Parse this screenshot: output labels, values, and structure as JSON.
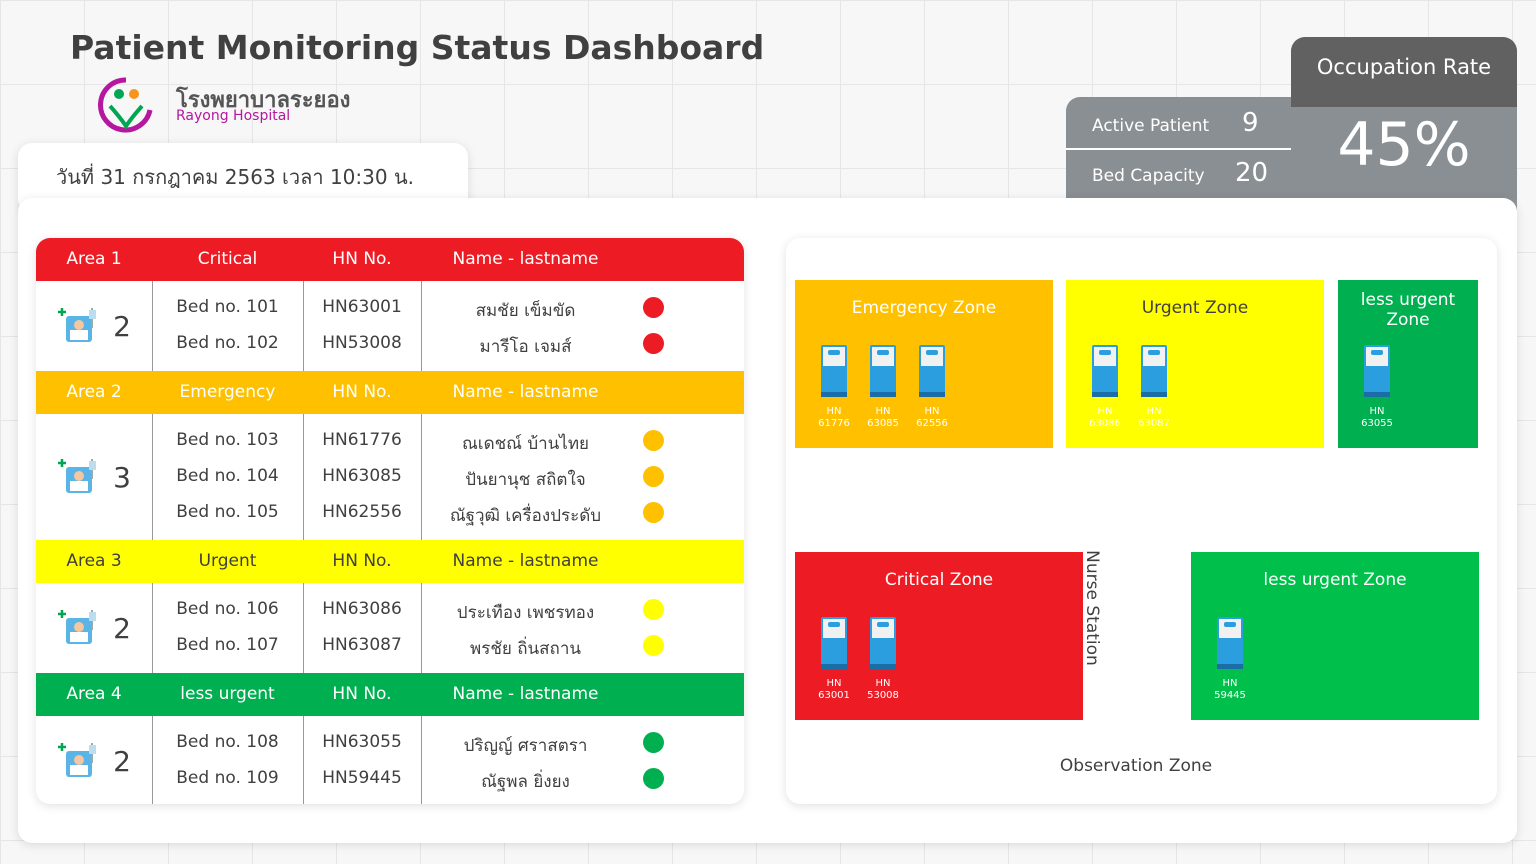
{
  "header": {
    "title": "Patient Monitoring Status Dashboard",
    "hospital_th": "โรงพยาบาลระยอง",
    "hospital_en": "Rayong Hospital",
    "date": "วันที่ 31 กรกฎาคม 2563 เวลา 10:30 น."
  },
  "stats": {
    "active_label": "Active Patient",
    "active_value": 9,
    "capacity_label": "Bed Capacity",
    "capacity_value": 20,
    "rate_title": "Occupation Rate",
    "rate_value": "45%"
  },
  "areas": [
    {
      "area": "Area 1",
      "level": "Critical",
      "hn_header": "HN No.",
      "name_header": "Name - lastname",
      "count": 2,
      "color": "#ed1c24",
      "text_color": "#ffffff",
      "patients": [
        {
          "bed": "Bed no. 101",
          "hn": "HN63001",
          "name": "สมชัย เข็มขัด"
        },
        {
          "bed": "Bed no. 102",
          "hn": "HN53008",
          "name": "มารีโอ เจมส์"
        }
      ]
    },
    {
      "area": "Area 2",
      "level": "Emergency",
      "hn_header": "HN No.",
      "name_header": "Name - lastname",
      "count": 3,
      "color": "#ffc000",
      "text_color": "#ffffff",
      "patients": [
        {
          "bed": "Bed no. 103",
          "hn": "HN61776",
          "name": "ณเดชณ์ บ้านไทย"
        },
        {
          "bed": "Bed no. 104",
          "hn": "HN63085",
          "name": "ปันยานุช สถิตใจ"
        },
        {
          "bed": "Bed no. 105",
          "hn": "HN62556",
          "name": "ณัฐวุฒิ เครื่องประดับ"
        }
      ]
    },
    {
      "area": "Area 3",
      "level": "Urgent",
      "hn_header": "HN No.",
      "name_header": "Name - lastname",
      "count": 2,
      "color": "#ffff00",
      "text_color": "#404040",
      "patients": [
        {
          "bed": "Bed no. 106",
          "hn": "HN63086",
          "name": "ประเทือง เพชรทอง"
        },
        {
          "bed": "Bed no. 107",
          "hn": "HN63087",
          "name": "พรชัย ถิ่นสถาน"
        }
      ]
    },
    {
      "area": "Area 4",
      "level": "less urgent",
      "hn_header": "HN No.",
      "name_header": "Name - lastname",
      "count": 2,
      "color": "#00b050",
      "text_color": "#ffffff",
      "patients": [
        {
          "bed": "Bed no. 108",
          "hn": "HN63055",
          "name": "ปริญญ์ ศราสตรา"
        },
        {
          "bed": "Bed no. 109",
          "hn": "HN59445",
          "name": "ณัฐพล ยิ่งยง"
        }
      ]
    }
  ],
  "map": {
    "hn_prefix": "HN",
    "nurse_station": "Nurse Station",
    "observation": "Observation Zone",
    "zones": [
      {
        "label": "Emergency Zone",
        "color": "#ffc000",
        "text_color": "#ffffff",
        "beds": [
          "61776",
          "63085",
          "62556"
        ]
      },
      {
        "label": "Urgent Zone",
        "color": "#ffff00",
        "text_color": "#404040",
        "beds": [
          "63086",
          "63087"
        ]
      },
      {
        "label": "less urgent Zone",
        "color": "#00b050",
        "text_color": "#ffffff",
        "beds": [
          "63055"
        ]
      },
      {
        "label": "Critical Zone",
        "color": "#ed1c24",
        "text_color": "#ffffff",
        "beds": [
          "63001",
          "53008"
        ]
      },
      {
        "label": "less urgent Zone",
        "color": "#00c04b",
        "text_color": "#ffffff",
        "beds": [
          "59445"
        ]
      }
    ]
  }
}
